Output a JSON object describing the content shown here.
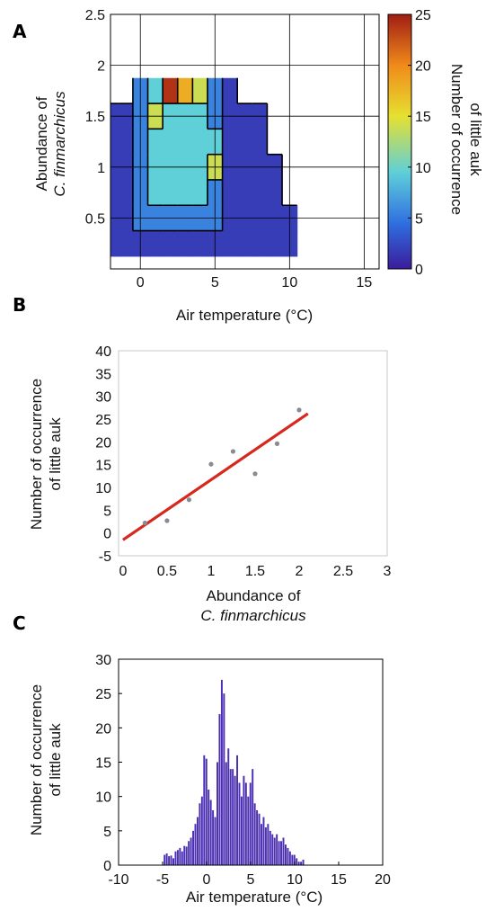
{
  "chart_data": [
    {
      "panel": "A",
      "type": "heatmap",
      "xlabel": "Air temperature (°C)",
      "ylabel_lines": [
        "Abundance of",
        "C. finmarchicus"
      ],
      "colorbar_label_lines": [
        "Number of occurrence",
        "of little auk"
      ],
      "xlim": [
        -2,
        16
      ],
      "ylim": [
        0,
        2.5
      ],
      "xticks": [
        0,
        5,
        10,
        15
      ],
      "yticks": [
        0.5,
        1,
        1.5,
        2,
        2.5
      ],
      "colorbar_ticks": [
        0,
        5,
        10,
        15,
        20,
        25
      ],
      "colorbar_range": [
        0,
        25
      ],
      "grid": true,
      "x": [
        -2,
        -1,
        0,
        1,
        2,
        3,
        4,
        5,
        6,
        7,
        8,
        9,
        10
      ],
      "y": [
        0.25,
        0.5,
        0.75,
        1.0,
        1.25,
        1.5,
        1.75
      ],
      "z": [
        [
          1,
          2,
          3,
          3,
          3,
          3,
          2,
          2,
          2,
          1,
          1,
          1,
          1
        ],
        [
          1,
          2,
          5,
          6,
          7,
          6,
          5,
          4,
          2,
          1,
          1,
          1,
          1
        ],
        [
          1,
          3,
          6,
          9,
          10,
          10,
          9,
          7,
          3,
          1,
          1,
          1,
          0
        ],
        [
          1,
          3,
          6,
          10,
          11,
          11,
          10,
          14,
          3,
          1,
          1,
          1,
          0
        ],
        [
          1,
          2,
          5,
          9,
          10,
          11,
          10,
          9,
          3,
          1,
          1,
          0,
          0
        ],
        [
          1,
          1,
          4,
          13,
          10,
          10,
          9,
          7,
          2,
          1,
          1,
          0,
          0
        ],
        [
          0,
          0,
          6,
          10,
          24,
          17,
          13,
          5,
          1,
          0,
          0,
          0,
          0
        ]
      ],
      "colormap": [
        "#3b1c9c",
        "#2f6fe0",
        "#5fd0d8",
        "#e6e030",
        "#f08a1a",
        "#a01d14"
      ]
    },
    {
      "panel": "B",
      "type": "scatter",
      "xlabel_lines": [
        "Abundance of",
        "C. finmarchicus"
      ],
      "ylabel_lines": [
        "Number of occurrence",
        "of little auk"
      ],
      "xlim": [
        -0.05,
        3
      ],
      "ylim": [
        -5,
        40
      ],
      "xticks": [
        0,
        0.5,
        1,
        1.5,
        2,
        2.5,
        3
      ],
      "yticks": [
        -5,
        0,
        5,
        10,
        15,
        20,
        25,
        30,
        35,
        40
      ],
      "points": {
        "x": [
          0.25,
          0.5,
          0.75,
          1.0,
          1.25,
          1.5,
          1.75,
          2.0
        ],
        "y": [
          2.2,
          2.7,
          7.3,
          15.1,
          17.9,
          13.0,
          19.6,
          27.0
        ]
      },
      "fit_line": {
        "x": [
          0.0,
          2.1
        ],
        "y": [
          -1.5,
          26.2
        ],
        "color": "#d7281d"
      },
      "point_color": "#8a8a95"
    },
    {
      "panel": "C",
      "type": "bar",
      "xlabel": "Air temperature (°C)",
      "ylabel_lines": [
        "Number of occurrence",
        "of little auk"
      ],
      "xlim": [
        -10,
        20
      ],
      "ylim": [
        0,
        30
      ],
      "xticks": [
        -10,
        -5,
        0,
        5,
        10,
        15,
        20
      ],
      "yticks": [
        0,
        5,
        10,
        15,
        20,
        25,
        30
      ],
      "bar_width": 0.25,
      "bar_color": "#4b2fb0",
      "x": [
        -4.75,
        -4.5,
        -4.25,
        -4.0,
        -3.75,
        -3.5,
        -3.25,
        -3.0,
        -2.75,
        -2.5,
        -2.25,
        -2.0,
        -1.75,
        -1.5,
        -1.25,
        -1.0,
        -0.75,
        -0.5,
        -0.25,
        0.0,
        0.25,
        0.5,
        0.75,
        1.0,
        1.25,
        1.5,
        1.75,
        2.0,
        2.25,
        2.5,
        2.75,
        3.0,
        3.25,
        3.5,
        3.75,
        4.0,
        4.25,
        4.5,
        4.75,
        5.0,
        5.25,
        5.5,
        5.75,
        6.0,
        6.25,
        6.5,
        6.75,
        7.0,
        7.25,
        7.5,
        7.75,
        8.0,
        8.25,
        8.5,
        8.75,
        9.0,
        9.25,
        9.5,
        9.75,
        10.0,
        10.25,
        10.5,
        10.75,
        11.0
      ],
      "values": [
        1.5,
        1.7,
        1.3,
        1.4,
        1.0,
        2.0,
        2.2,
        2.5,
        2.0,
        2.8,
        2.7,
        3.5,
        4.0,
        5.0,
        6.0,
        7.0,
        9.0,
        10.0,
        16.0,
        15.5,
        11.0,
        9.5,
        8.0,
        7.0,
        15.0,
        22.0,
        27.0,
        25.0,
        15.0,
        17.0,
        14.0,
        14.0,
        13.0,
        16.0,
        12.0,
        10.0,
        13.0,
        12.0,
        10.0,
        12.0,
        14.0,
        9.0,
        8.0,
        7.5,
        6.0,
        7.0,
        5.5,
        6.0,
        5.0,
        4.5,
        4.0,
        4.5,
        3.5,
        3.5,
        4.0,
        3.0,
        2.5,
        2.0,
        1.5,
        1.5,
        1.0,
        0.5,
        0.5,
        0.8
      ]
    }
  ]
}
